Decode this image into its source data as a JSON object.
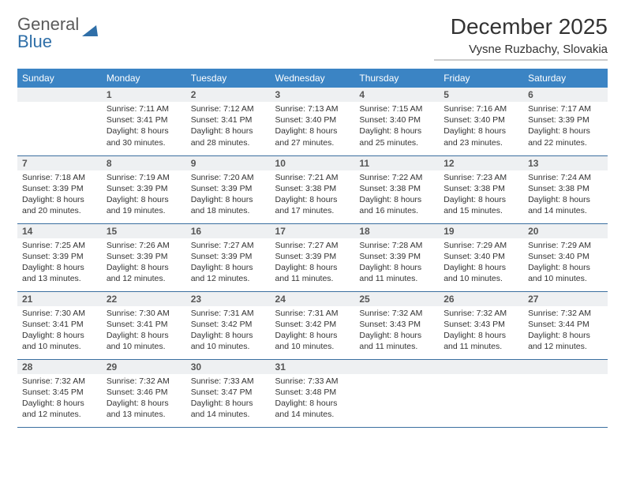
{
  "logo": {
    "line1": "General",
    "line2": "Blue",
    "icon_color": "#2f6fa8",
    "text_color_1": "#5a5a5a",
    "text_color_2": "#2f6fa8"
  },
  "title": "December 2025",
  "location": "Vysne Ruzbachy, Slovakia",
  "header_bg": "#3b84c4",
  "daynum_bg": "#eef0f2",
  "border_color": "#3b6fa0",
  "weekdays": [
    "Sunday",
    "Monday",
    "Tuesday",
    "Wednesday",
    "Thursday",
    "Friday",
    "Saturday"
  ],
  "weeks": [
    [
      null,
      {
        "n": "1",
        "sr": "Sunrise: 7:11 AM",
        "ss": "Sunset: 3:41 PM",
        "d1": "Daylight: 8 hours",
        "d2": "and 30 minutes."
      },
      {
        "n": "2",
        "sr": "Sunrise: 7:12 AM",
        "ss": "Sunset: 3:41 PM",
        "d1": "Daylight: 8 hours",
        "d2": "and 28 minutes."
      },
      {
        "n": "3",
        "sr": "Sunrise: 7:13 AM",
        "ss": "Sunset: 3:40 PM",
        "d1": "Daylight: 8 hours",
        "d2": "and 27 minutes."
      },
      {
        "n": "4",
        "sr": "Sunrise: 7:15 AM",
        "ss": "Sunset: 3:40 PM",
        "d1": "Daylight: 8 hours",
        "d2": "and 25 minutes."
      },
      {
        "n": "5",
        "sr": "Sunrise: 7:16 AM",
        "ss": "Sunset: 3:40 PM",
        "d1": "Daylight: 8 hours",
        "d2": "and 23 minutes."
      },
      {
        "n": "6",
        "sr": "Sunrise: 7:17 AM",
        "ss": "Sunset: 3:39 PM",
        "d1": "Daylight: 8 hours",
        "d2": "and 22 minutes."
      }
    ],
    [
      {
        "n": "7",
        "sr": "Sunrise: 7:18 AM",
        "ss": "Sunset: 3:39 PM",
        "d1": "Daylight: 8 hours",
        "d2": "and 20 minutes."
      },
      {
        "n": "8",
        "sr": "Sunrise: 7:19 AM",
        "ss": "Sunset: 3:39 PM",
        "d1": "Daylight: 8 hours",
        "d2": "and 19 minutes."
      },
      {
        "n": "9",
        "sr": "Sunrise: 7:20 AM",
        "ss": "Sunset: 3:39 PM",
        "d1": "Daylight: 8 hours",
        "d2": "and 18 minutes."
      },
      {
        "n": "10",
        "sr": "Sunrise: 7:21 AM",
        "ss": "Sunset: 3:38 PM",
        "d1": "Daylight: 8 hours",
        "d2": "and 17 minutes."
      },
      {
        "n": "11",
        "sr": "Sunrise: 7:22 AM",
        "ss": "Sunset: 3:38 PM",
        "d1": "Daylight: 8 hours",
        "d2": "and 16 minutes."
      },
      {
        "n": "12",
        "sr": "Sunrise: 7:23 AM",
        "ss": "Sunset: 3:38 PM",
        "d1": "Daylight: 8 hours",
        "d2": "and 15 minutes."
      },
      {
        "n": "13",
        "sr": "Sunrise: 7:24 AM",
        "ss": "Sunset: 3:38 PM",
        "d1": "Daylight: 8 hours",
        "d2": "and 14 minutes."
      }
    ],
    [
      {
        "n": "14",
        "sr": "Sunrise: 7:25 AM",
        "ss": "Sunset: 3:39 PM",
        "d1": "Daylight: 8 hours",
        "d2": "and 13 minutes."
      },
      {
        "n": "15",
        "sr": "Sunrise: 7:26 AM",
        "ss": "Sunset: 3:39 PM",
        "d1": "Daylight: 8 hours",
        "d2": "and 12 minutes."
      },
      {
        "n": "16",
        "sr": "Sunrise: 7:27 AM",
        "ss": "Sunset: 3:39 PM",
        "d1": "Daylight: 8 hours",
        "d2": "and 12 minutes."
      },
      {
        "n": "17",
        "sr": "Sunrise: 7:27 AM",
        "ss": "Sunset: 3:39 PM",
        "d1": "Daylight: 8 hours",
        "d2": "and 11 minutes."
      },
      {
        "n": "18",
        "sr": "Sunrise: 7:28 AM",
        "ss": "Sunset: 3:39 PM",
        "d1": "Daylight: 8 hours",
        "d2": "and 11 minutes."
      },
      {
        "n": "19",
        "sr": "Sunrise: 7:29 AM",
        "ss": "Sunset: 3:40 PM",
        "d1": "Daylight: 8 hours",
        "d2": "and 10 minutes."
      },
      {
        "n": "20",
        "sr": "Sunrise: 7:29 AM",
        "ss": "Sunset: 3:40 PM",
        "d1": "Daylight: 8 hours",
        "d2": "and 10 minutes."
      }
    ],
    [
      {
        "n": "21",
        "sr": "Sunrise: 7:30 AM",
        "ss": "Sunset: 3:41 PM",
        "d1": "Daylight: 8 hours",
        "d2": "and 10 minutes."
      },
      {
        "n": "22",
        "sr": "Sunrise: 7:30 AM",
        "ss": "Sunset: 3:41 PM",
        "d1": "Daylight: 8 hours",
        "d2": "and 10 minutes."
      },
      {
        "n": "23",
        "sr": "Sunrise: 7:31 AM",
        "ss": "Sunset: 3:42 PM",
        "d1": "Daylight: 8 hours",
        "d2": "and 10 minutes."
      },
      {
        "n": "24",
        "sr": "Sunrise: 7:31 AM",
        "ss": "Sunset: 3:42 PM",
        "d1": "Daylight: 8 hours",
        "d2": "and 10 minutes."
      },
      {
        "n": "25",
        "sr": "Sunrise: 7:32 AM",
        "ss": "Sunset: 3:43 PM",
        "d1": "Daylight: 8 hours",
        "d2": "and 11 minutes."
      },
      {
        "n": "26",
        "sr": "Sunrise: 7:32 AM",
        "ss": "Sunset: 3:43 PM",
        "d1": "Daylight: 8 hours",
        "d2": "and 11 minutes."
      },
      {
        "n": "27",
        "sr": "Sunrise: 7:32 AM",
        "ss": "Sunset: 3:44 PM",
        "d1": "Daylight: 8 hours",
        "d2": "and 12 minutes."
      }
    ],
    [
      {
        "n": "28",
        "sr": "Sunrise: 7:32 AM",
        "ss": "Sunset: 3:45 PM",
        "d1": "Daylight: 8 hours",
        "d2": "and 12 minutes."
      },
      {
        "n": "29",
        "sr": "Sunrise: 7:32 AM",
        "ss": "Sunset: 3:46 PM",
        "d1": "Daylight: 8 hours",
        "d2": "and 13 minutes."
      },
      {
        "n": "30",
        "sr": "Sunrise: 7:33 AM",
        "ss": "Sunset: 3:47 PM",
        "d1": "Daylight: 8 hours",
        "d2": "and 14 minutes."
      },
      {
        "n": "31",
        "sr": "Sunrise: 7:33 AM",
        "ss": "Sunset: 3:48 PM",
        "d1": "Daylight: 8 hours",
        "d2": "and 14 minutes."
      },
      null,
      null,
      null
    ]
  ]
}
